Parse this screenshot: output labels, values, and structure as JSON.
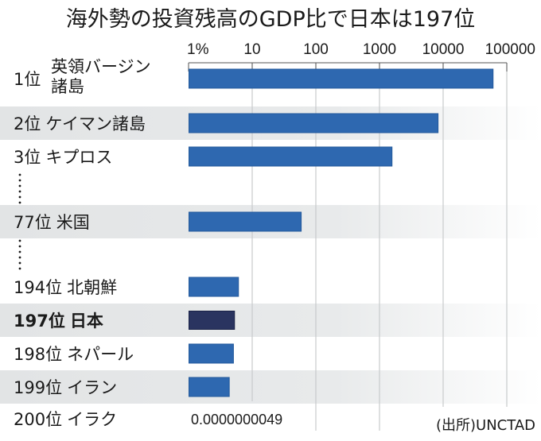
{
  "chart_data": {
    "type": "bar",
    "orientation": "horizontal",
    "title": "海外勢の投資残高のGDP比で日本は197位",
    "xscale": "log",
    "xlim": [
      1,
      100000
    ],
    "xunit": "%",
    "ticks": [
      {
        "value": 1,
        "label": "1%"
      },
      {
        "value": 10,
        "label": "10"
      },
      {
        "value": 100,
        "label": "100"
      },
      {
        "value": 1000,
        "label": "1000"
      },
      {
        "value": 10000,
        "label": "10000"
      },
      {
        "value": 100000,
        "label": "100000"
      }
    ],
    "grid": true,
    "rows": [
      {
        "rank": "1位",
        "name_lines": [
          "英領バージン",
          "諸島"
        ],
        "value": 60000,
        "highlight": false,
        "band": false
      },
      {
        "rank": "2位",
        "name_lines": [
          "ケイマン諸島"
        ],
        "value": 8200,
        "highlight": false,
        "band": true
      },
      {
        "rank": "3位",
        "name_lines": [
          "キプロス"
        ],
        "value": 1550,
        "highlight": false,
        "band": false
      },
      {
        "ellipsis": true
      },
      {
        "rank": "77位",
        "name_lines": [
          "米国"
        ],
        "value": 58,
        "highlight": false,
        "band": true
      },
      {
        "ellipsis": true
      },
      {
        "rank": "194位",
        "name_lines": [
          "北朝鮮"
        ],
        "value": 6.0,
        "highlight": false,
        "band": false
      },
      {
        "rank": "197位",
        "name_lines": [
          "日本"
        ],
        "value": 5.2,
        "highlight": true,
        "band": true
      },
      {
        "rank": "198位",
        "name_lines": [
          "ネパール"
        ],
        "value": 5.0,
        "highlight": false,
        "band": false
      },
      {
        "rank": "199位",
        "name_lines": [
          "イラン"
        ],
        "value": 4.3,
        "highlight": false,
        "band": true
      },
      {
        "rank": "200位",
        "name_lines": [
          "イラク"
        ],
        "value": 4.9e-09,
        "value_label": "0.0000000049",
        "highlight": false,
        "band": false
      }
    ],
    "source": "(出所)UNCTAD",
    "colors": {
      "bar": "#2e68b0",
      "bar_highlight": "#2a3460",
      "band": "#e3e5e6",
      "grid": "#c8cacc",
      "axis": "#555555"
    }
  }
}
